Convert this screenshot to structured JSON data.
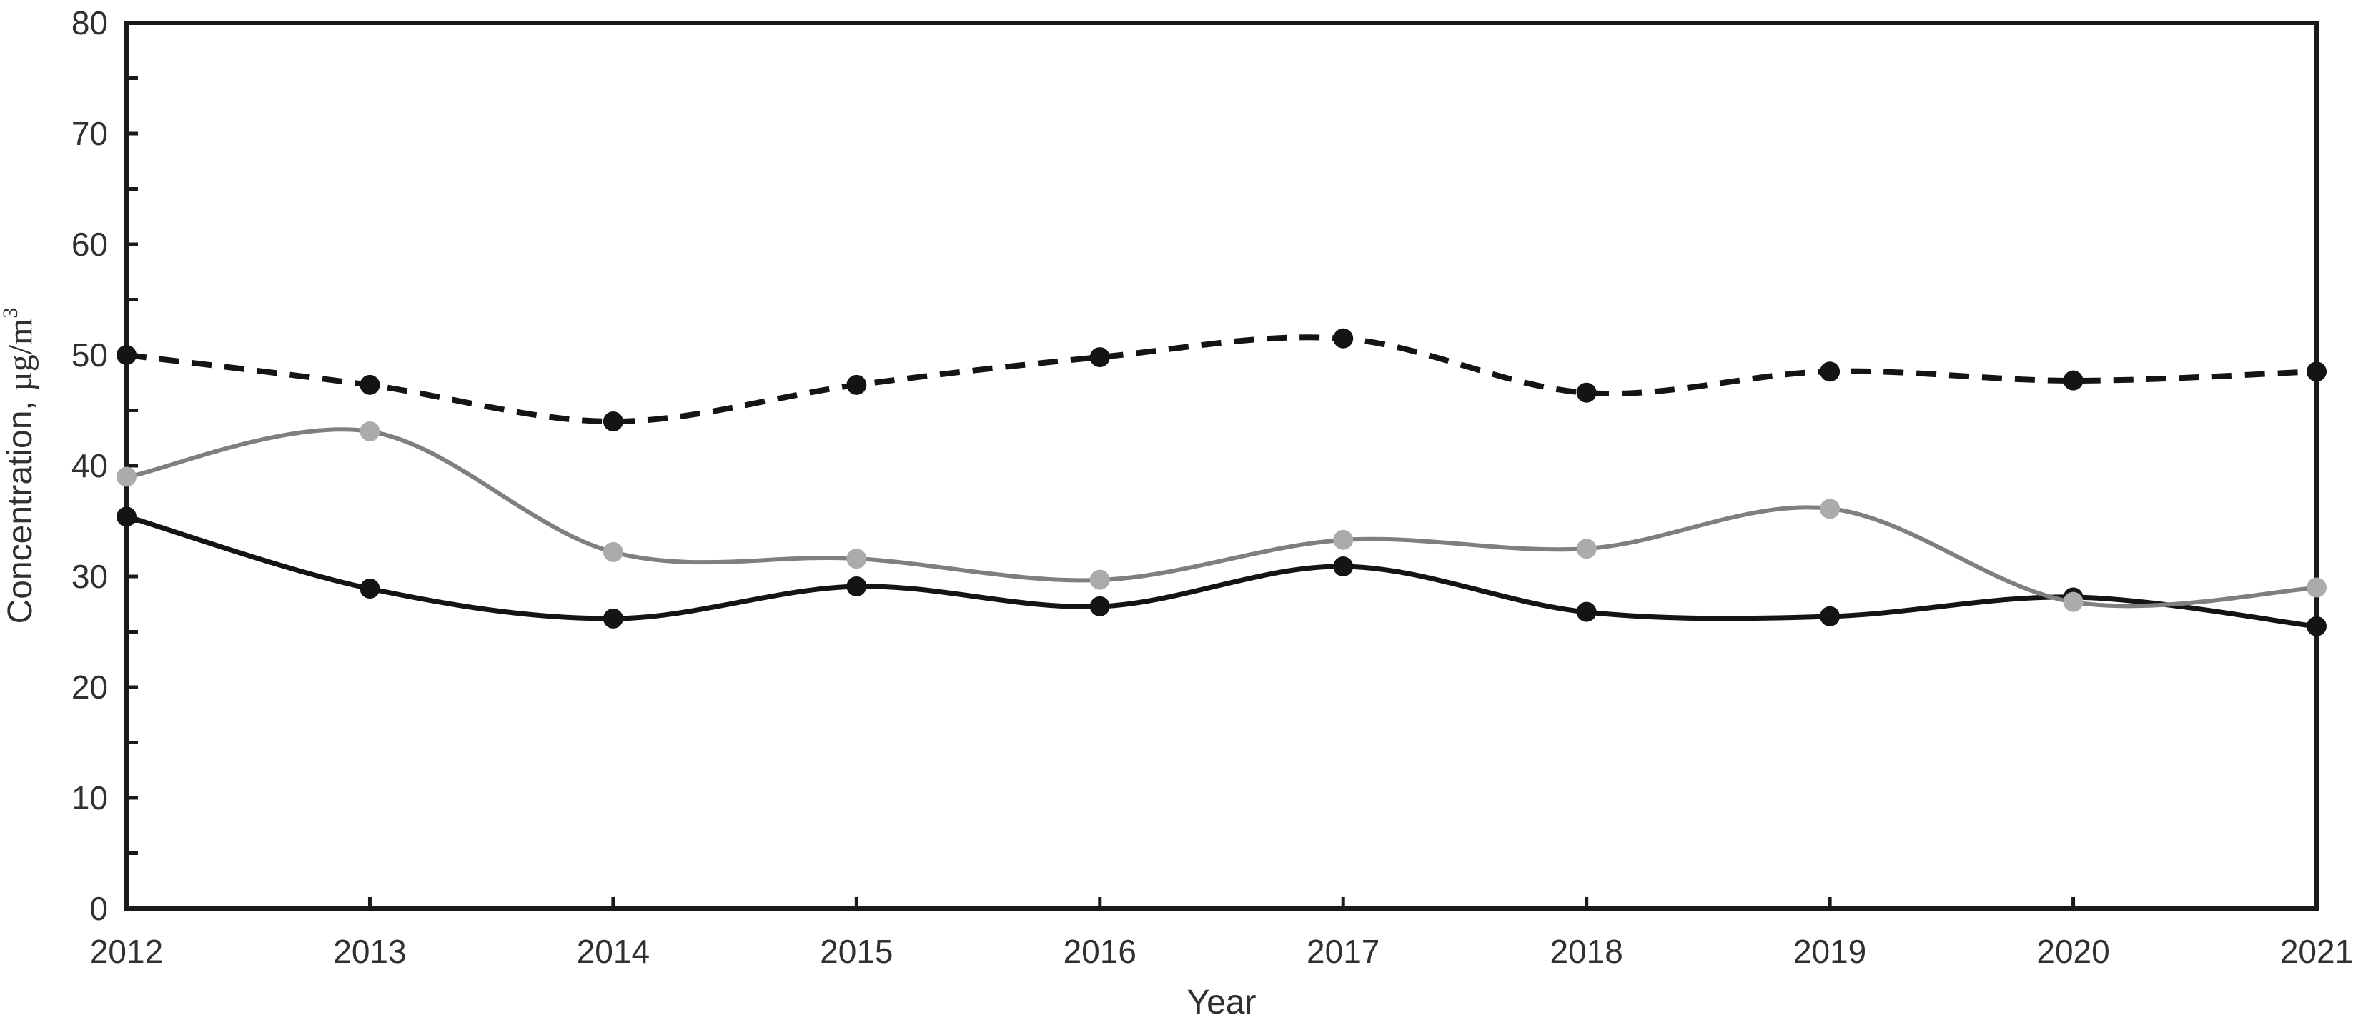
{
  "chart_data": {
    "type": "line",
    "title": "",
    "xlabel": "Year",
    "ylabel": "Concentration, µg/m³",
    "ylabel_parts": {
      "sans_part": "Concentration, ",
      "serif_part": "µg/m",
      "superscript": "3"
    },
    "x": [
      2012,
      2013,
      2014,
      2015,
      2016,
      2017,
      2018,
      2019,
      2020,
      2021
    ],
    "xlim": [
      2012,
      2021
    ],
    "ylim": [
      0,
      80
    ],
    "ytick_label_step": 10,
    "ytick_minor_step": 5,
    "ytick_labels": [
      "0",
      "10",
      "20",
      "30",
      "40",
      "50",
      "60",
      "70",
      "80"
    ],
    "xtick_labels": [
      "2012",
      "2013",
      "2014",
      "2015",
      "2016",
      "2017",
      "2018",
      "2019",
      "2020",
      "2021"
    ],
    "grid": "off",
    "legend": "none",
    "frame": true,
    "axis_color": "#1a1a1a",
    "tick_label_color": "#303030",
    "series": [
      {
        "id": "series-dashed-black",
        "line_style": "dashed",
        "line_color": "#141414",
        "marker_color": "#141414",
        "smooth": true,
        "values": [
          50.0,
          47.3,
          44.0,
          47.3,
          49.8,
          51.5,
          46.6,
          48.5,
          47.7,
          48.5
        ]
      },
      {
        "id": "series-solid-black",
        "line_style": "solid",
        "line_color": "#141414",
        "marker_color": "#141414",
        "smooth": true,
        "values": [
          35.4,
          28.9,
          26.2,
          29.1,
          27.3,
          30.9,
          26.8,
          26.4,
          28.1,
          25.5
        ]
      },
      {
        "id": "series-solid-gray",
        "line_style": "solid",
        "line_color": "#7f7f7f",
        "marker_color": "#ababab",
        "smooth": true,
        "values": [
          39.0,
          43.1,
          32.2,
          31.6,
          29.7,
          33.3,
          32.5,
          36.1,
          27.7,
          29.0
        ]
      }
    ]
  }
}
